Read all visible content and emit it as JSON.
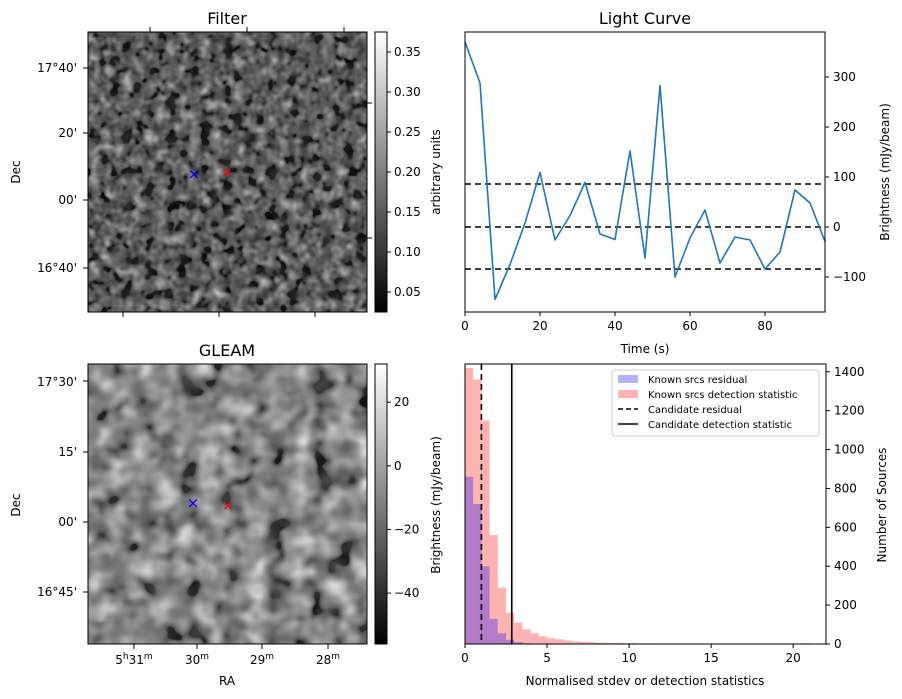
{
  "figure": {
    "filter_panel": {
      "title": "Filter",
      "ylabel": "Dec",
      "yticks": [
        "17°40'",
        "20'",
        "00'",
        "16°40'"
      ],
      "colorbar": {
        "label": "arbitrary units",
        "range": [
          0.025,
          0.375
        ],
        "ticks": [
          "0.35",
          "0.30",
          "0.25",
          "0.20",
          "0.15",
          "0.10",
          "0.05"
        ],
        "tick_values": [
          0.35,
          0.3,
          0.25,
          0.2,
          0.15,
          0.1,
          0.05
        ]
      },
      "markers": [
        {
          "name": "blue-cross-marker",
          "symbol": "×",
          "color": "#0000ff"
        },
        {
          "name": "red-cross-marker",
          "symbol": "×",
          "color": "#ff0000"
        }
      ]
    },
    "gleam_panel": {
      "title": "GLEAM",
      "ylabel": "Dec",
      "xlabel": "RA",
      "yticks": [
        "17°30'",
        "15'",
        "00'",
        "16°45'"
      ],
      "xticks": [
        {
          "main": "5",
          "sup1": "h",
          "mid": "31",
          "sup2": "m"
        },
        {
          "main": "30",
          "sup": "m"
        },
        {
          "main": "29",
          "sup": "m"
        },
        {
          "main": "28",
          "sup": "m"
        }
      ],
      "colorbar": {
        "label": "Brightness (mJy/beam)",
        "range": [
          -56,
          32
        ],
        "ticks": [
          "20",
          "0",
          "−20",
          "−40"
        ],
        "tick_values": [
          20,
          0,
          -20,
          -40
        ]
      },
      "markers": [
        {
          "name": "blue-cross-marker",
          "symbol": "×",
          "color": "#0000ff"
        },
        {
          "name": "red-cross-marker",
          "symbol": "×",
          "color": "#ff0000"
        }
      ]
    }
  },
  "chart_data": [
    {
      "type": "line",
      "title": "Light Curve",
      "xlabel": "Time (s)",
      "ylabel": "Brightness (mJy/beam)",
      "xlim": [
        0,
        96
      ],
      "ylim": [
        -170,
        390
      ],
      "xticks": [
        0,
        20,
        40,
        60,
        80
      ],
      "yticks": [
        -100,
        0,
        100,
        200,
        300
      ],
      "x": [
        0,
        4,
        8,
        12,
        16,
        20,
        24,
        28,
        32,
        36,
        40,
        44,
        48,
        52,
        56,
        60,
        64,
        68,
        72,
        76,
        80,
        84,
        88,
        92,
        96
      ],
      "series": [
        {
          "name": "light curve",
          "color": "#1f77b4",
          "values": [
            370,
            288,
            -145,
            -75,
            8,
            109,
            -26,
            23,
            89,
            -14,
            -25,
            152,
            -62,
            283,
            -100,
            -22,
            34,
            -72,
            -20,
            -26,
            -84,
            -50,
            74,
            48,
            -29
          ]
        }
      ],
      "hlines": [
        {
          "y": 86,
          "style": "dashed",
          "color": "#000000"
        },
        {
          "y": 0,
          "style": "dashed",
          "color": "#000000"
        },
        {
          "y": -84,
          "style": "dashed",
          "color": "#000000"
        }
      ]
    },
    {
      "type": "histogram",
      "xlabel": "Normalised stdev or detection statistics",
      "ylabel": "Number of Sources",
      "xlim": [
        0,
        22
      ],
      "ylim": [
        0,
        1440
      ],
      "xticks": [
        0,
        5,
        10,
        15,
        20
      ],
      "yticks": [
        0,
        200,
        400,
        600,
        800,
        1000,
        1200,
        1400
      ],
      "bin_width": 0.5,
      "series": [
        {
          "name": "Known srcs residual",
          "color": "#0000ff",
          "bin_starts": [
            0,
            0.5,
            1.0,
            1.5,
            2.0,
            2.5,
            3.0,
            3.5,
            4.0
          ],
          "values": [
            860,
            720,
            400,
            130,
            55,
            22,
            10,
            4,
            2
          ]
        },
        {
          "name": "Known srcs detection statistic",
          "color": "#ff0000",
          "bin_starts": [
            0,
            0.5,
            1.0,
            1.5,
            2.0,
            2.5,
            3.0,
            3.5,
            4.0,
            4.5,
            5.0,
            5.5,
            6.0,
            6.5,
            7.0,
            7.5,
            8.0,
            8.5,
            9.0,
            9.5,
            10.0,
            10.5,
            11.0,
            11.5,
            12.0,
            12.5,
            13.0,
            13.5,
            14.0,
            14.5,
            15.0,
            15.5,
            16.0,
            16.5,
            17.0,
            17.5,
            18.0,
            18.5,
            19.0,
            19.5,
            20.0,
            20.5,
            21.0
          ],
          "values": [
            1420,
            1360,
            1150,
            560,
            290,
            160,
            110,
            75,
            55,
            40,
            30,
            24,
            18,
            14,
            11,
            9,
            7,
            6,
            5,
            4,
            4,
            3,
            3,
            3,
            2,
            2,
            2,
            2,
            2,
            2,
            2,
            1,
            1,
            1,
            1,
            1,
            1,
            1,
            1,
            1,
            1,
            4,
            1
          ]
        }
      ],
      "vlines": [
        {
          "name": "Candidate residual",
          "x": 1.0,
          "style": "dashed",
          "color": "#000000"
        },
        {
          "name": "Candidate detection statistic",
          "x": 2.85,
          "style": "solid",
          "color": "#000000"
        }
      ],
      "legend": {
        "position": "top-right",
        "entries": [
          "Known srcs residual",
          "Known srcs detection statistic",
          "Candidate residual",
          "Candidate detection statistic"
        ]
      }
    }
  ]
}
